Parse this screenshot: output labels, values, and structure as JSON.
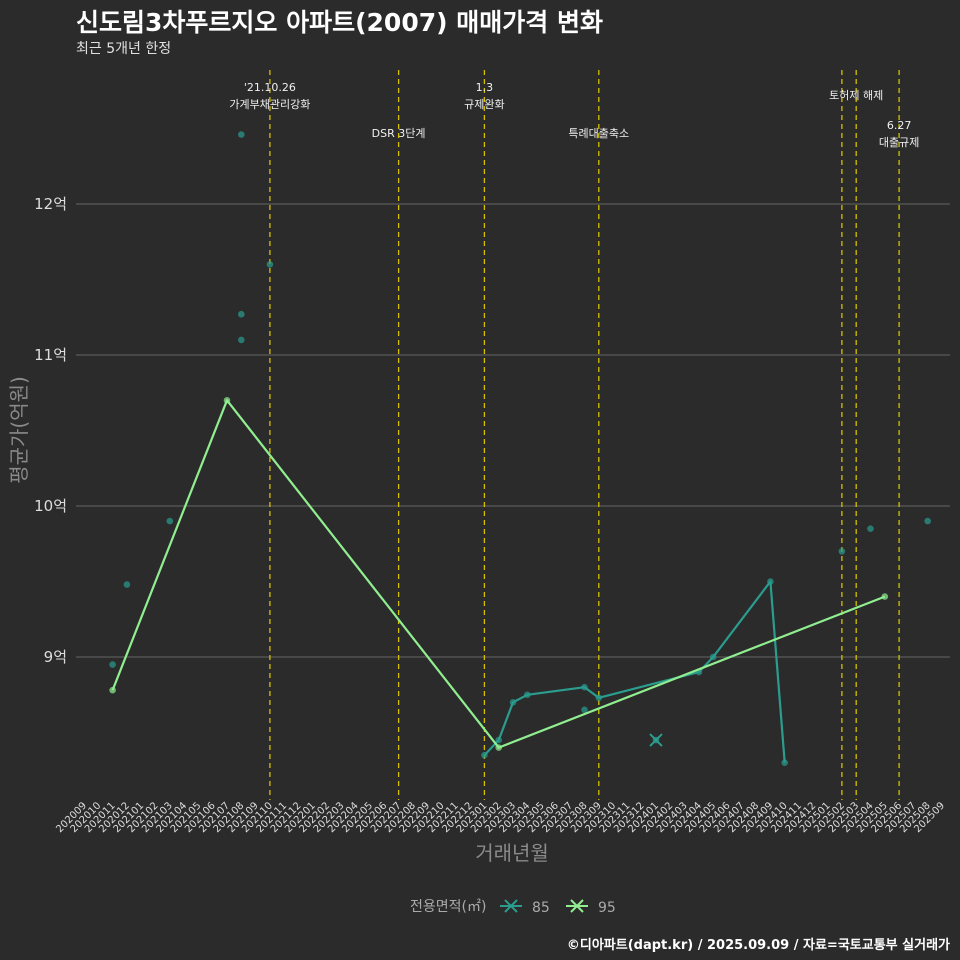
{
  "title": "신도림3차푸르지오 아파트(2007) 매매가격 변화",
  "subtitle": "최근 5개년 한정",
  "credit": "©디아파트(dapt.kr) / 2025.09.09 / 자료=국토교통부 실거래가",
  "chart_data": {
    "type": "line",
    "xlabel": "거래년월",
    "ylabel": "평균가(억원)",
    "x_ticks": [
      "202009",
      "202010",
      "202011",
      "202012",
      "202101",
      "202102",
      "202103",
      "202104",
      "202105",
      "202106",
      "202107",
      "202108",
      "202109",
      "202110",
      "202111",
      "202112",
      "202201",
      "202202",
      "202203",
      "202204",
      "202205",
      "202206",
      "202207",
      "202208",
      "202209",
      "202210",
      "202211",
      "202212",
      "202301",
      "202302",
      "202303",
      "202304",
      "202305",
      "202306",
      "202307",
      "202308",
      "202309",
      "202310",
      "202311",
      "202312",
      "202401",
      "202402",
      "202403",
      "202404",
      "202405",
      "202406",
      "202407",
      "202408",
      "202409",
      "202410",
      "202411",
      "202412",
      "202501",
      "202502",
      "202503",
      "202504",
      "202505",
      "202506",
      "202507",
      "202508",
      "202509"
    ],
    "y_ticks": [
      {
        "value": 9,
        "label": "9억"
      },
      {
        "value": 10,
        "label": "10억"
      },
      {
        "value": 11,
        "label": "11억"
      },
      {
        "value": 12,
        "label": "12억"
      }
    ],
    "ylim": [
      8.05,
      12.9
    ],
    "grid": true,
    "legend": {
      "title": "전용면적(㎡)",
      "position": "bottom"
    },
    "series": [
      {
        "name": "85",
        "color": "#2a9d8f",
        "points": [
          [
            "202011",
            8.95
          ],
          [
            "202012",
            9.48
          ],
          [
            "202103",
            9.9
          ],
          [
            "202108",
            12.46
          ],
          [
            "202108",
            11.27
          ],
          [
            "202108",
            11.1
          ],
          [
            "202110",
            11.6
          ],
          [
            "202301",
            8.35
          ],
          [
            "202302",
            8.45
          ],
          [
            "202303",
            8.7
          ],
          [
            "202304",
            8.75
          ],
          [
            "202308",
            8.8
          ],
          [
            "202309",
            8.73
          ],
          [
            "202308",
            8.65
          ],
          [
            "202401",
            8.45
          ],
          [
            "202404",
            8.9
          ],
          [
            "202405",
            9.0
          ],
          [
            "202409",
            9.5
          ],
          [
            "202410",
            8.3
          ],
          [
            "202502",
            9.7
          ],
          [
            "202504",
            9.85
          ],
          [
            "202508",
            9.9
          ]
        ],
        "line": [
          [
            "202301",
            8.35
          ],
          [
            "202302",
            8.45
          ],
          [
            "202303",
            8.7
          ],
          [
            "202304",
            8.75
          ],
          [
            "202308",
            8.8
          ],
          [
            "202309",
            8.73
          ],
          [
            "202404",
            8.9
          ],
          [
            "202405",
            9.0
          ],
          [
            "202409",
            9.5
          ],
          [
            "202410",
            8.3
          ]
        ]
      },
      {
        "name": "95",
        "color": "#90ee90",
        "points": [
          [
            "202011",
            8.78
          ],
          [
            "202107",
            10.7
          ],
          [
            "202302",
            8.4
          ],
          [
            "202505",
            9.4
          ]
        ],
        "line": [
          [
            "202011",
            8.78
          ],
          [
            "202107",
            10.7
          ],
          [
            "202302",
            8.4
          ],
          [
            "202505",
            9.4
          ]
        ]
      }
    ],
    "annotations": [
      {
        "x": "202110",
        "lines": [
          "'21.10.26",
          "가계부채관리강화"
        ],
        "row": 0
      },
      {
        "x": "202207",
        "lines": [
          "DSR 3단계"
        ],
        "row": 2
      },
      {
        "x": "202301",
        "lines": [
          "1.3",
          "규제완화"
        ],
        "row": 0
      },
      {
        "x": "202309",
        "lines": [
          "특례대출축소"
        ],
        "row": 2
      },
      {
        "x": "202502",
        "lines": [],
        "row": 0
      },
      {
        "x": "202503",
        "lines": [
          "토허제 해제"
        ],
        "row": 1
      },
      {
        "x": "202506",
        "lines": [
          "6.27",
          "대출규제"
        ],
        "row": 3
      }
    ]
  }
}
